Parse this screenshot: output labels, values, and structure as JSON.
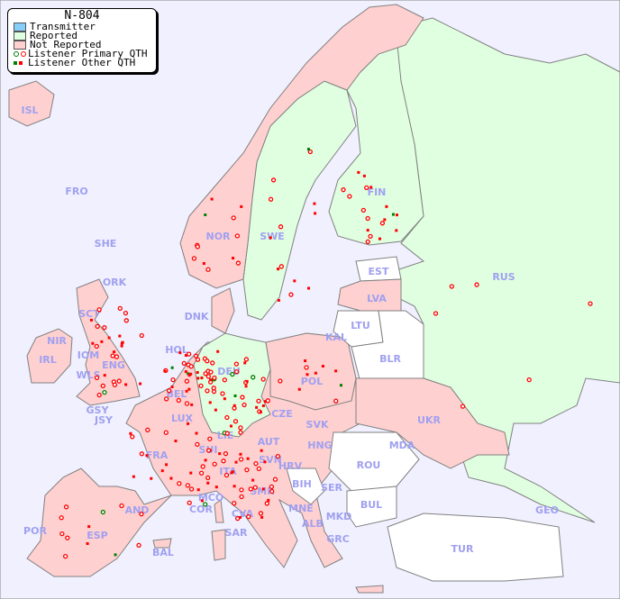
{
  "map": {
    "title": "N-804",
    "legend": {
      "transmitter": "Transmitter",
      "reported": "Reported",
      "not_reported": "Not Reported",
      "primary_qth": "Listener Primary QTH",
      "other_qth": "Listener Other QTH"
    },
    "colors": {
      "sea": "#f0f0ff",
      "transmitter": "#87cefa",
      "reported": "#e0ffe0",
      "not_reported": "#ffd0d0",
      "no_listener": "#ffffff",
      "listener_reported": "#008000",
      "listener_not_reported": "#ff0000",
      "label": "#a0a0f0"
    },
    "countries": {
      "ISL": "ISL",
      "FRO": "FRO",
      "SHE": "SHE",
      "ORK": "ORK",
      "NOR": "NOR",
      "SWE": "SWE",
      "FIN": "FIN",
      "RUS": "RUS",
      "EST": "EST",
      "LVA": "LVA",
      "LTU": "LTU",
      "KAL": "KAL",
      "BLR": "BLR",
      "DNK": "DNK",
      "HOL": "HOL",
      "BEL": "BEL",
      "DEU": "DEU",
      "POL": "POL",
      "UKR": "UKR",
      "CZE": "CZE",
      "SVK": "SVK",
      "HNG": "HNG",
      "AUT": "AUT",
      "MDA": "MDA",
      "ROU": "ROU",
      "LUX": "LUX",
      "SUI": "SUI",
      "LIE": "LIE",
      "FRA": "FRA",
      "SVN": "SVN",
      "HRV": "HRV",
      "BIH": "BIH",
      "SRB": "SER",
      "BUL": "BUL",
      "MNE": "MNE",
      "ALB": "ALB",
      "MKD": "MKD",
      "GRC": "GRC",
      "TUR": "TUR",
      "GEO": "GEO",
      "ITA": "ITA",
      "SMR": "SMR",
      "MCO": "MCO",
      "COR": "COR",
      "CVA": "CVA",
      "SAR": "SAR",
      "AND": "AND",
      "POR": "POR",
      "ESP": "ESP",
      "BAL": "BAL",
      "IRL": "IRL",
      "NIR": "NIR",
      "IOM": "IOM",
      "WLS": "WLS",
      "ENG": "ENG",
      "SCT": "SCT",
      "GSY": "GSY",
      "JSY": "JSY"
    }
  }
}
